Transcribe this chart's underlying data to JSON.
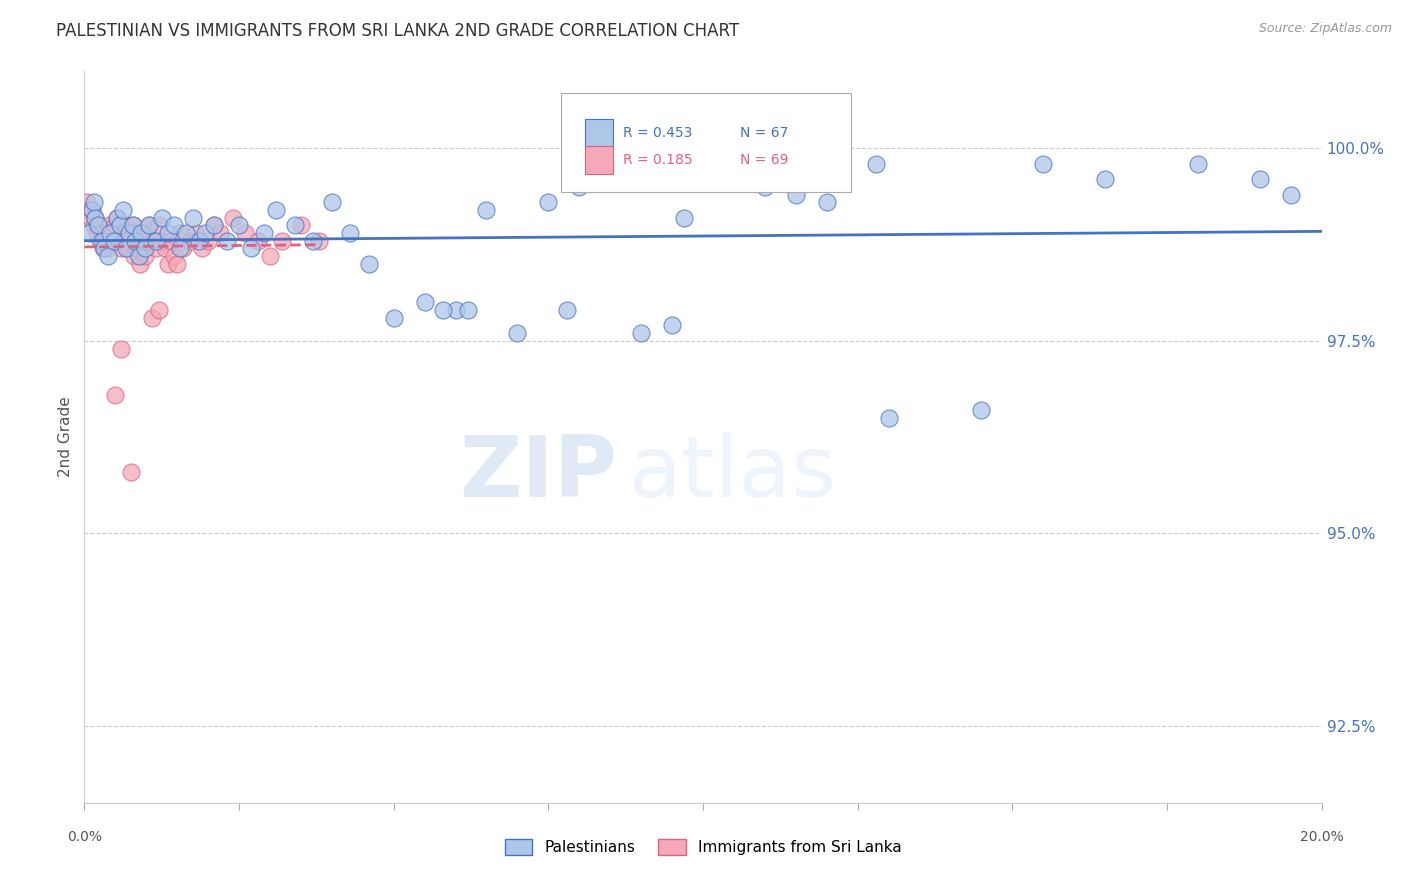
{
  "title": "PALESTINIAN VS IMMIGRANTS FROM SRI LANKA 2ND GRADE CORRELATION CHART",
  "source": "Source: ZipAtlas.com",
  "ylabel": "2nd Grade",
  "y_ticks": [
    92.5,
    95.0,
    97.5,
    100.0
  ],
  "y_tick_labels": [
    "92.5%",
    "95.0%",
    "97.5%",
    "100.0%"
  ],
  "x_min": 0.0,
  "x_max": 20.0,
  "y_min": 91.5,
  "y_max": 101.0,
  "blue_R": 0.453,
  "blue_N": 67,
  "pink_R": 0.185,
  "pink_N": 69,
  "blue_color": "#aec6e8",
  "pink_color": "#f4a8b8",
  "blue_line_color": "#4472c4",
  "pink_line_color": "#e06080",
  "legend_blue_label": "Palestinians",
  "legend_pink_label": "Immigrants from Sri Lanka",
  "watermark_zip": "ZIP",
  "watermark_atlas": "atlas",
  "background_color": "#ffffff",
  "grid_color": "#cccccc",
  "right_axis_color": "#4472c4",
  "title_color": "#333333",
  "blue_scatter_x": [
    0.08,
    0.12,
    0.15,
    0.18,
    0.22,
    0.28,
    0.32,
    0.38,
    0.42,
    0.48,
    0.52,
    0.58,
    0.62,
    0.68,
    0.72,
    0.78,
    0.82,
    0.88,
    0.92,
    0.98,
    1.05,
    1.15,
    1.25,
    1.35,
    1.45,
    1.55,
    1.65,
    1.75,
    1.85,
    1.95,
    2.1,
    2.3,
    2.5,
    2.7,
    2.9,
    3.1,
    3.4,
    3.7,
    4.0,
    4.3,
    4.6,
    5.0,
    5.5,
    6.0,
    6.5,
    7.0,
    7.5,
    8.0,
    8.5,
    9.0,
    9.5,
    10.0,
    11.0,
    12.0,
    13.0,
    14.5,
    15.5,
    16.5,
    18.0,
    19.0,
    19.5,
    11.5,
    12.8,
    9.7,
    5.8,
    6.2,
    7.8
  ],
  "blue_scatter_y": [
    98.9,
    99.2,
    99.3,
    99.1,
    99.0,
    98.8,
    98.7,
    98.6,
    98.9,
    98.8,
    99.1,
    99.0,
    99.2,
    98.7,
    98.9,
    99.0,
    98.8,
    98.6,
    98.9,
    98.7,
    99.0,
    98.8,
    99.1,
    98.9,
    99.0,
    98.7,
    98.9,
    99.1,
    98.8,
    98.9,
    99.0,
    98.8,
    99.0,
    98.7,
    98.9,
    99.2,
    99.0,
    98.8,
    99.3,
    98.9,
    98.5,
    97.8,
    98.0,
    97.9,
    99.2,
    97.6,
    99.3,
    99.5,
    99.7,
    97.6,
    97.7,
    99.8,
    99.5,
    99.3,
    96.5,
    96.6,
    99.8,
    99.6,
    99.8,
    99.6,
    99.4,
    99.4,
    99.8,
    99.1,
    97.9,
    97.9,
    97.9
  ],
  "pink_scatter_x": [
    0.05,
    0.08,
    0.1,
    0.12,
    0.15,
    0.17,
    0.2,
    0.22,
    0.25,
    0.28,
    0.3,
    0.33,
    0.35,
    0.38,
    0.4,
    0.42,
    0.45,
    0.48,
    0.5,
    0.53,
    0.55,
    0.58,
    0.6,
    0.63,
    0.65,
    0.68,
    0.7,
    0.73,
    0.75,
    0.78,
    0.8,
    0.83,
    0.85,
    0.88,
    0.9,
    0.93,
    0.95,
    0.98,
    1.0,
    1.05,
    1.1,
    1.15,
    1.2,
    1.25,
    1.3,
    1.35,
    1.4,
    1.45,
    1.5,
    1.55,
    1.6,
    1.7,
    1.8,
    1.9,
    2.0,
    2.1,
    2.2,
    2.4,
    2.6,
    2.8,
    3.0,
    3.2,
    3.5,
    3.8,
    1.1,
    1.2,
    0.6,
    0.5,
    0.75
  ],
  "pink_scatter_y": [
    99.3,
    99.2,
    99.1,
    99.2,
    99.0,
    99.1,
    98.9,
    99.0,
    98.8,
    98.9,
    98.7,
    98.8,
    98.9,
    98.7,
    99.0,
    98.8,
    98.9,
    98.8,
    99.0,
    99.1,
    98.8,
    99.0,
    98.7,
    98.9,
    98.8,
    99.0,
    98.7,
    98.9,
    98.8,
    99.0,
    98.6,
    98.8,
    98.7,
    98.9,
    98.5,
    98.8,
    98.9,
    98.6,
    98.8,
    99.0,
    98.8,
    98.7,
    99.0,
    98.8,
    98.7,
    98.5,
    98.8,
    98.6,
    98.5,
    98.9,
    98.7,
    98.8,
    98.9,
    98.7,
    98.8,
    99.0,
    98.9,
    99.1,
    98.9,
    98.8,
    98.6,
    98.8,
    99.0,
    98.8,
    97.8,
    97.9,
    97.4,
    96.8,
    95.8
  ]
}
